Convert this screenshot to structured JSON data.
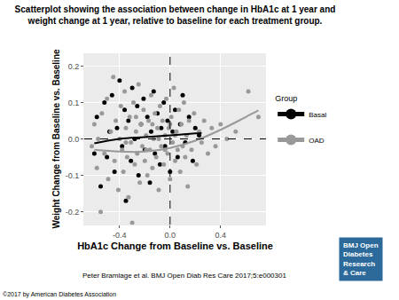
{
  "chart_data": {
    "type": "scatter",
    "title": "Scatterplot showing the association between change in HbA1c at 1 year and weight change at 1 year, relative to baseline for each treatment group.",
    "x_label": "HbA1c Change from Baseline vs. Baseline",
    "y_label": "Weight Change from Baseline vs. Baseline",
    "legend_title": "Group",
    "legend": "right",
    "grid": true,
    "xlim": [
      -0.68,
      0.76
    ],
    "xticks": [
      -0.4,
      {
        "value": 0,
        "label": "0.0"
      },
      0.4
    ],
    "ylim": [
      -0.235,
      0.235
    ],
    "yticks": [
      -0.2,
      -0.1,
      {
        "value": 0,
        "label": "0.0"
      },
      0.1,
      0.2
    ],
    "vlines": [
      0
    ],
    "hlines": [
      0
    ],
    "series": [
      {
        "name": "Basal",
        "color": "#000000",
        "marker": "circle",
        "x": [
          -0.6,
          -0.58,
          -0.55,
          -0.52,
          -0.5,
          -0.48,
          -0.46,
          -0.44,
          -0.42,
          -0.4,
          -0.38,
          -0.36,
          -0.35,
          -0.33,
          -0.31,
          -0.3,
          -0.28,
          -0.26,
          -0.25,
          -0.23,
          -0.21,
          -0.2,
          -0.18,
          -0.16,
          -0.15,
          -0.13,
          -0.12,
          -0.1,
          -0.08,
          -0.07,
          -0.05,
          -0.04,
          -0.02,
          0.0,
          0.02,
          0.04,
          0.06,
          0.08,
          0.1,
          0.12,
          0.15,
          0.18,
          0.2,
          0.23
        ],
        "values": [
          -0.04,
          0.06,
          -0.13,
          0.1,
          -0.05,
          0.02,
          0.12,
          -0.09,
          0.03,
          0.16,
          -0.02,
          0.08,
          -0.17,
          0.05,
          -0.06,
          0.14,
          0.0,
          0.09,
          -0.1,
          0.04,
          0.11,
          -0.03,
          0.06,
          -0.12,
          0.02,
          0.13,
          -0.04,
          0.07,
          -0.07,
          0.03,
          0.1,
          -0.02,
          0.05,
          -0.09,
          0.02,
          0.08,
          -0.05,
          0.04,
          0.12,
          -0.01,
          0.06,
          -0.06,
          0.03,
          0.01
        ],
        "trend": {
          "x": [
            -0.6,
            -0.4,
            -0.2,
            0.0,
            0.2,
            0.25
          ],
          "values": [
            -0.012,
            0.0,
            0.005,
            0.01,
            0.015,
            0.016
          ]
        }
      },
      {
        "name": "OAD",
        "color": "#999999",
        "marker": "circle",
        "x": [
          -0.62,
          -0.6,
          -0.58,
          -0.57,
          -0.55,
          -0.54,
          -0.52,
          -0.5,
          -0.49,
          -0.47,
          -0.45,
          -0.44,
          -0.43,
          -0.41,
          -0.4,
          -0.39,
          -0.38,
          -0.37,
          -0.36,
          -0.35,
          -0.34,
          -0.33,
          -0.32,
          -0.31,
          -0.3,
          -0.29,
          -0.28,
          -0.27,
          -0.26,
          -0.25,
          -0.24,
          -0.23,
          -0.22,
          -0.21,
          -0.2,
          -0.19,
          -0.18,
          -0.17,
          -0.16,
          -0.15,
          -0.14,
          -0.13,
          -0.12,
          -0.11,
          -0.1,
          -0.09,
          -0.08,
          -0.07,
          -0.06,
          -0.05,
          -0.04,
          -0.03,
          -0.02,
          -0.01,
          0.0,
          0.01,
          0.02,
          0.03,
          0.04,
          0.05,
          0.06,
          0.07,
          0.08,
          0.09,
          0.1,
          0.11,
          0.12,
          0.13,
          0.14,
          0.15,
          0.17,
          0.19,
          0.21,
          0.23,
          0.25,
          0.27,
          0.3,
          0.33,
          0.36,
          0.4,
          0.45,
          0.52,
          0.62,
          0.7,
          -0.35,
          -0.27,
          -0.19,
          -0.14,
          -0.09,
          -0.04,
          0.0,
          0.04
        ],
        "values": [
          -0.02,
          0.04,
          -0.08,
          0.0,
          -0.2,
          0.07,
          -0.04,
          0.11,
          -0.11,
          0.02,
          0.17,
          -0.06,
          0.05,
          -0.14,
          0.0,
          0.09,
          -0.03,
          -0.09,
          0.13,
          0.03,
          -0.05,
          -0.16,
          0.06,
          -0.01,
          -0.23,
          0.1,
          -0.07,
          0.02,
          -0.04,
          0.15,
          -0.12,
          0.04,
          -0.02,
          0.08,
          -0.06,
          0.01,
          -0.1,
          0.05,
          -0.03,
          0.12,
          -0.08,
          0.0,
          0.07,
          -0.05,
          0.03,
          -0.14,
          0.09,
          -0.02,
          0.05,
          -0.07,
          0.01,
          0.11,
          -0.04,
          0.03,
          -0.11,
          0.06,
          -0.01,
          0.14,
          -0.06,
          0.02,
          -0.03,
          0.08,
          -0.09,
          0.04,
          -0.02,
          0.1,
          -0.05,
          0.01,
          -0.13,
          0.05,
          -0.03,
          0.07,
          -0.07,
          0.02,
          -0.01,
          0.05,
          -0.04,
          0.03,
          -0.02,
          0.04,
          0.0,
          0.02,
          0.13,
          0.06,
          -0.01,
          0.06,
          -0.03,
          0.04,
          0.0,
          -0.03,
          0.04,
          0.01
        ],
        "trend": {
          "x": [
            -0.6,
            -0.4,
            -0.2,
            0.0,
            0.2,
            0.4,
            0.6,
            0.7
          ],
          "values": [
            -0.03,
            -0.035,
            -0.035,
            -0.025,
            -0.005,
            0.025,
            0.06,
            0.078
          ]
        }
      }
    ],
    "annotations": [
      "Peter Bramlage et al. BMJ Open Diab Res Care 2017;5:e000301",
      "©2017 by American Diabetes Association"
    ],
    "logo": [
      "BMJ Open",
      "Diabetes",
      "Research",
      "& Care"
    ]
  }
}
